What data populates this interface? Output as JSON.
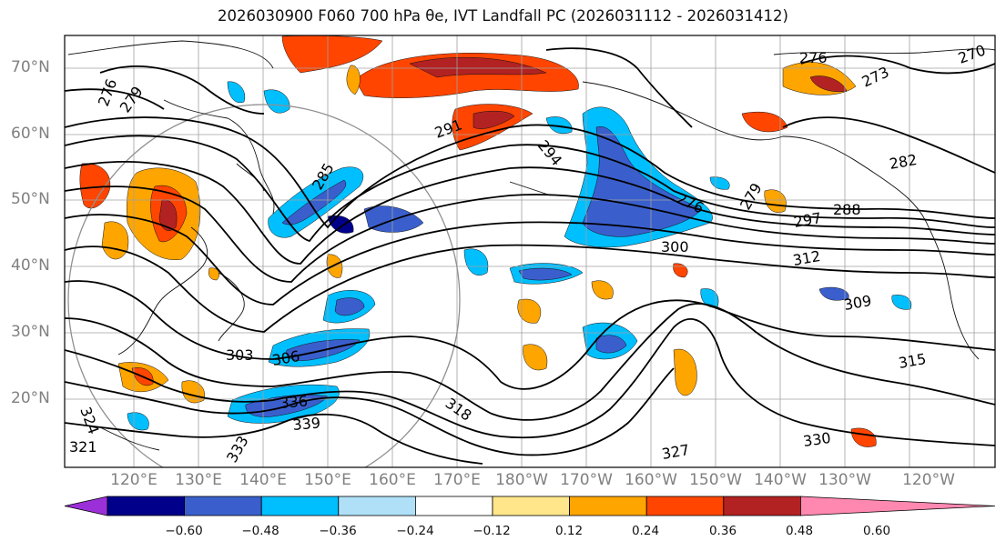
{
  "title": "2026030900 F060 700 hPa θe, IVT Landfall PC (2026031112 - 2026031412)",
  "latitude_labels": [
    "70°N",
    "60°N",
    "50°N",
    "40°N",
    "30°N",
    "20°N"
  ],
  "longitude_labels": [
    "120°E",
    "130°E",
    "140°E",
    "150°E",
    "160°E",
    "170°E",
    "180°W",
    "170°W",
    "160°W",
    "150°W",
    "140°W",
    "130°W",
    "120°W"
  ],
  "contour_labels": [
    "276",
    "279",
    "276",
    "273",
    "270",
    "276",
    "279",
    "282",
    "285",
    "288",
    "291",
    "294",
    "297",
    "300",
    "303",
    "306",
    "309",
    "312",
    "315",
    "318",
    "321",
    "324",
    "327",
    "330",
    "333",
    "336",
    "339"
  ],
  "colorbar": {
    "ticks": [
      "−0.60",
      "−0.48",
      "−0.36",
      "−0.24",
      "−0.12",
      "0.12",
      "0.24",
      "0.36",
      "0.48",
      "0.60"
    ],
    "colors": [
      "#9b30d9",
      "#00008b",
      "#3a5fcd",
      "#00bfff",
      "#afe0f7",
      "#ffffff",
      "#ffe68a",
      "#ffa500",
      "#ff4500",
      "#b22222",
      "#ff88b0"
    ]
  }
}
